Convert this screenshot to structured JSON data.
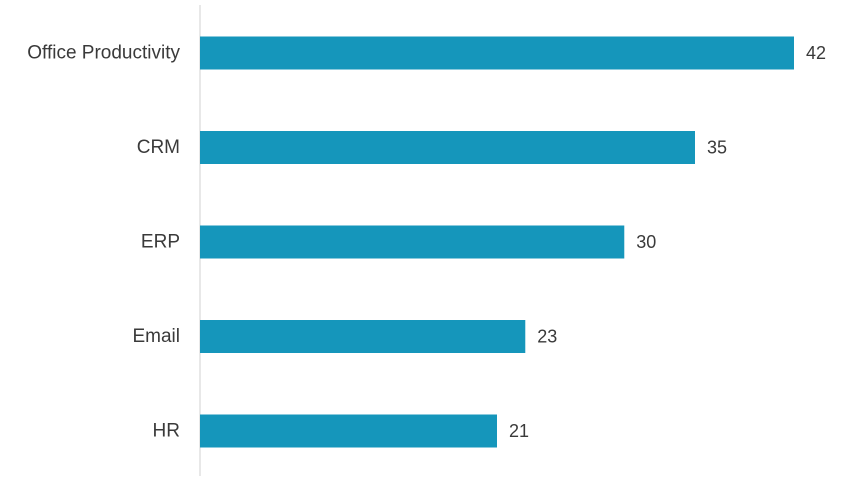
{
  "chart_data": {
    "type": "bar",
    "orientation": "horizontal",
    "categories": [
      "Office Productivity",
      "CRM",
      "ERP",
      "Email",
      "HR"
    ],
    "values": [
      42,
      35,
      30,
      23,
      21
    ],
    "title": "",
    "xlabel": "",
    "ylabel": "",
    "xlim": [
      0,
      42
    ],
    "grid": false,
    "legend": "none",
    "bar_color": "#1596bb",
    "axis_color": "#d0d0d0"
  }
}
